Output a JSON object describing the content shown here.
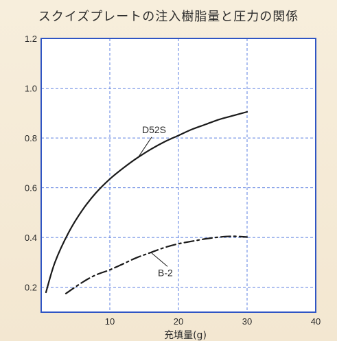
{
  "chart_data": {
    "type": "line",
    "title": "スクイズプレートの注入樹脂量と圧力の関係",
    "xlabel": "充填量(g)",
    "ylabel": "",
    "xlim": [
      0,
      40
    ],
    "ylim": [
      0.1,
      1.2
    ],
    "xticks": [
      10,
      20,
      30,
      40
    ],
    "yticks": [
      0.2,
      0.4,
      0.6,
      0.8,
      1.0,
      1.2
    ],
    "ytick_labels": [
      "0.2",
      "0.4",
      "0.6",
      "0.8",
      "1.0",
      "1.2"
    ],
    "grid": true,
    "series": [
      {
        "name": "D52S",
        "style": "solid",
        "color": "#1a1a1a",
        "x": [
          0.7,
          2,
          4,
          6,
          8,
          10,
          12,
          14,
          16,
          18,
          20,
          22,
          24,
          26,
          28,
          30
        ],
        "y": [
          0.18,
          0.3,
          0.42,
          0.51,
          0.58,
          0.635,
          0.68,
          0.72,
          0.755,
          0.785,
          0.81,
          0.835,
          0.855,
          0.875,
          0.89,
          0.905
        ]
      },
      {
        "name": "B-2",
        "style": "dash-dot",
        "color": "#1a1a1a",
        "x": [
          3.6,
          6,
          8,
          10,
          12,
          14,
          16,
          18,
          20,
          22,
          24,
          26,
          28,
          30
        ],
        "y": [
          0.175,
          0.22,
          0.25,
          0.27,
          0.295,
          0.32,
          0.34,
          0.36,
          0.375,
          0.385,
          0.395,
          0.402,
          0.405,
          0.402
        ]
      }
    ],
    "annotations": [
      {
        "text": "D52S",
        "x": 15.5,
        "y": 0.82,
        "target_x": 14.2,
        "target_y": 0.725
      },
      {
        "text": "B-2",
        "x": 17.8,
        "y": 0.245,
        "target_x": 16.0,
        "target_y": 0.34
      }
    ]
  },
  "style": {
    "background": "#f6ecd8",
    "plot_bg": "#ffffff",
    "axis_color": "#2f55c4",
    "grid_color": "#5b7fe0",
    "line_color": "#1a1a1a"
  }
}
